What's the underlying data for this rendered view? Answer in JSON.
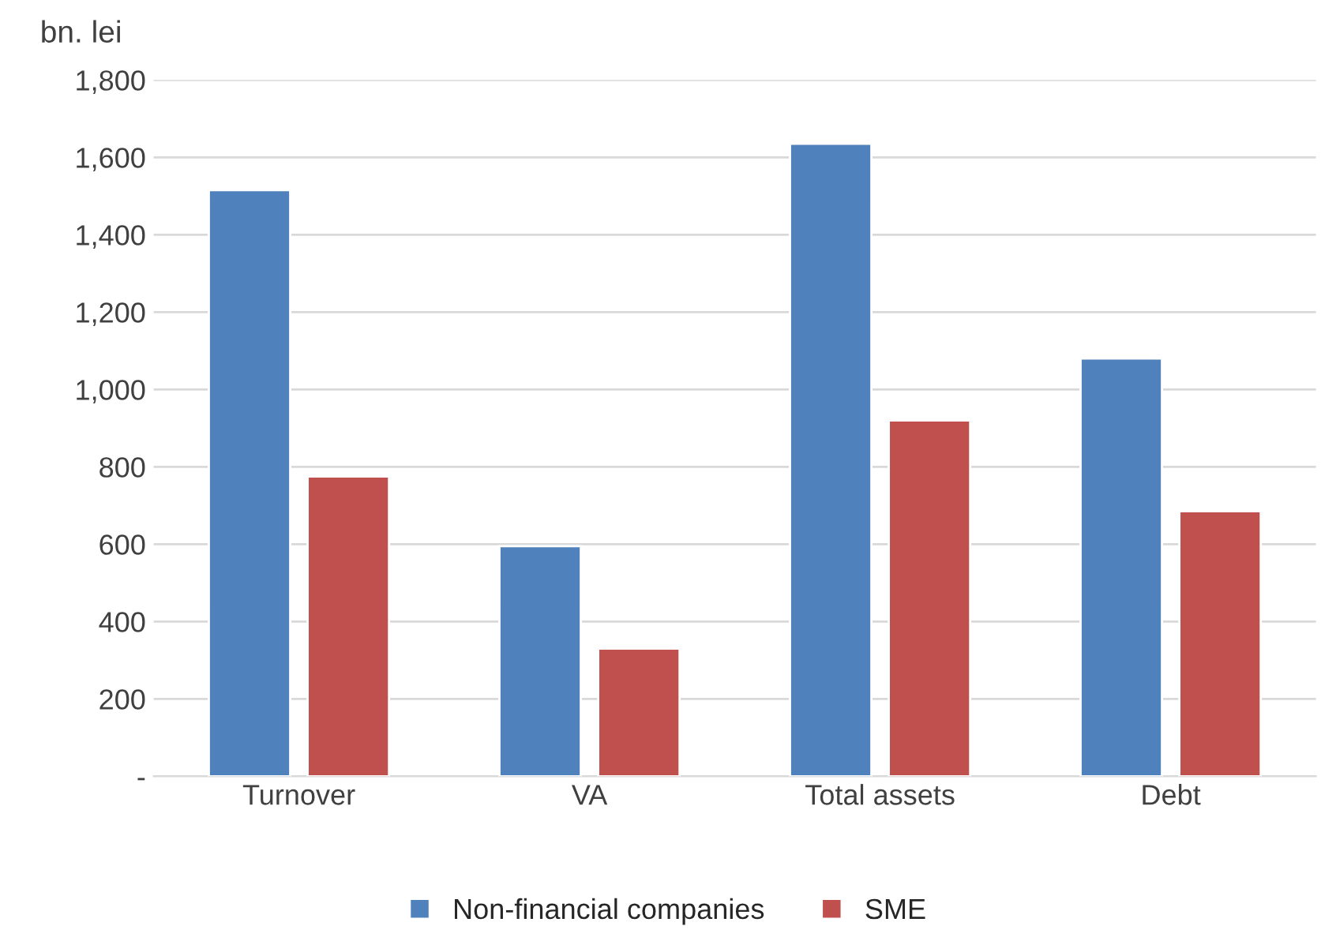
{
  "chart_data": {
    "type": "bar",
    "ylabel": "bn. lei",
    "categories": [
      "Turnover",
      "VA",
      "Total assets",
      "Debt"
    ],
    "series": [
      {
        "name": "Non-financial companies",
        "color": "#4f81bd",
        "values": [
          1515,
          595,
          1635,
          1080
        ]
      },
      {
        "name": "SME",
        "color": "#c0504d",
        "values": [
          775,
          330,
          920,
          685
        ]
      }
    ],
    "ylim": [
      0,
      1800
    ],
    "yticks": [
      {
        "value": 0,
        "label": "-"
      },
      {
        "value": 200,
        "label": "200"
      },
      {
        "value": 400,
        "label": "400"
      },
      {
        "value": 600,
        "label": "600"
      },
      {
        "value": 800,
        "label": "800"
      },
      {
        "value": 1000,
        "label": "1,000"
      },
      {
        "value": 1200,
        "label": "1,200"
      },
      {
        "value": 1400,
        "label": "1,400"
      },
      {
        "value": 1600,
        "label": "1,600"
      },
      {
        "value": 1800,
        "label": "1,800"
      }
    ],
    "grid": "y",
    "legend": "bottom"
  }
}
